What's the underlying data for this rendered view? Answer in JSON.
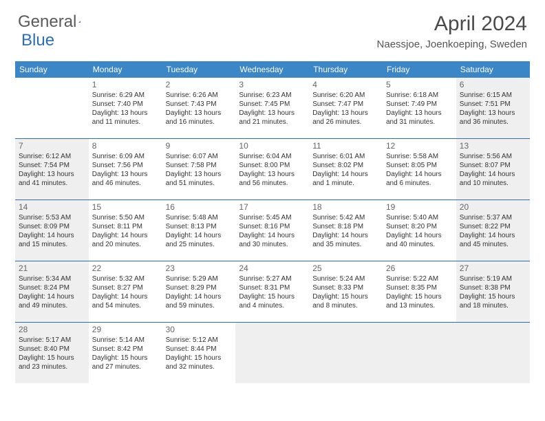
{
  "logo": {
    "text1": "General",
    "text2": "Blue"
  },
  "title": "April 2024",
  "location": "Naessjoe, Joenkoeping, Sweden",
  "colors": {
    "header_bg": "#3b86c7",
    "border": "#2a6db8",
    "shaded": "#efefef",
    "text": "#333333"
  },
  "day_headers": [
    "Sunday",
    "Monday",
    "Tuesday",
    "Wednesday",
    "Thursday",
    "Friday",
    "Saturday"
  ],
  "weeks": [
    [
      {
        "empty": true
      },
      {
        "n": "1",
        "sunrise": "Sunrise: 6:29 AM",
        "sunset": "Sunset: 7:40 PM",
        "daylight": "Daylight: 13 hours and 11 minutes."
      },
      {
        "n": "2",
        "sunrise": "Sunrise: 6:26 AM",
        "sunset": "Sunset: 7:43 PM",
        "daylight": "Daylight: 13 hours and 16 minutes."
      },
      {
        "n": "3",
        "sunrise": "Sunrise: 6:23 AM",
        "sunset": "Sunset: 7:45 PM",
        "daylight": "Daylight: 13 hours and 21 minutes."
      },
      {
        "n": "4",
        "sunrise": "Sunrise: 6:20 AM",
        "sunset": "Sunset: 7:47 PM",
        "daylight": "Daylight: 13 hours and 26 minutes."
      },
      {
        "n": "5",
        "sunrise": "Sunrise: 6:18 AM",
        "sunset": "Sunset: 7:49 PM",
        "daylight": "Daylight: 13 hours and 31 minutes."
      },
      {
        "n": "6",
        "sunrise": "Sunrise: 6:15 AM",
        "sunset": "Sunset: 7:51 PM",
        "daylight": "Daylight: 13 hours and 36 minutes.",
        "shaded": true
      }
    ],
    [
      {
        "n": "7",
        "sunrise": "Sunrise: 6:12 AM",
        "sunset": "Sunset: 7:54 PM",
        "daylight": "Daylight: 13 hours and 41 minutes.",
        "shaded": true
      },
      {
        "n": "8",
        "sunrise": "Sunrise: 6:09 AM",
        "sunset": "Sunset: 7:56 PM",
        "daylight": "Daylight: 13 hours and 46 minutes."
      },
      {
        "n": "9",
        "sunrise": "Sunrise: 6:07 AM",
        "sunset": "Sunset: 7:58 PM",
        "daylight": "Daylight: 13 hours and 51 minutes."
      },
      {
        "n": "10",
        "sunrise": "Sunrise: 6:04 AM",
        "sunset": "Sunset: 8:00 PM",
        "daylight": "Daylight: 13 hours and 56 minutes."
      },
      {
        "n": "11",
        "sunrise": "Sunrise: 6:01 AM",
        "sunset": "Sunset: 8:02 PM",
        "daylight": "Daylight: 14 hours and 1 minute."
      },
      {
        "n": "12",
        "sunrise": "Sunrise: 5:58 AM",
        "sunset": "Sunset: 8:05 PM",
        "daylight": "Daylight: 14 hours and 6 minutes."
      },
      {
        "n": "13",
        "sunrise": "Sunrise: 5:56 AM",
        "sunset": "Sunset: 8:07 PM",
        "daylight": "Daylight: 14 hours and 10 minutes.",
        "shaded": true
      }
    ],
    [
      {
        "n": "14",
        "sunrise": "Sunrise: 5:53 AM",
        "sunset": "Sunset: 8:09 PM",
        "daylight": "Daylight: 14 hours and 15 minutes.",
        "shaded": true
      },
      {
        "n": "15",
        "sunrise": "Sunrise: 5:50 AM",
        "sunset": "Sunset: 8:11 PM",
        "daylight": "Daylight: 14 hours and 20 minutes."
      },
      {
        "n": "16",
        "sunrise": "Sunrise: 5:48 AM",
        "sunset": "Sunset: 8:13 PM",
        "daylight": "Daylight: 14 hours and 25 minutes."
      },
      {
        "n": "17",
        "sunrise": "Sunrise: 5:45 AM",
        "sunset": "Sunset: 8:16 PM",
        "daylight": "Daylight: 14 hours and 30 minutes."
      },
      {
        "n": "18",
        "sunrise": "Sunrise: 5:42 AM",
        "sunset": "Sunset: 8:18 PM",
        "daylight": "Daylight: 14 hours and 35 minutes."
      },
      {
        "n": "19",
        "sunrise": "Sunrise: 5:40 AM",
        "sunset": "Sunset: 8:20 PM",
        "daylight": "Daylight: 14 hours and 40 minutes."
      },
      {
        "n": "20",
        "sunrise": "Sunrise: 5:37 AM",
        "sunset": "Sunset: 8:22 PM",
        "daylight": "Daylight: 14 hours and 45 minutes.",
        "shaded": true
      }
    ],
    [
      {
        "n": "21",
        "sunrise": "Sunrise: 5:34 AM",
        "sunset": "Sunset: 8:24 PM",
        "daylight": "Daylight: 14 hours and 49 minutes.",
        "shaded": true
      },
      {
        "n": "22",
        "sunrise": "Sunrise: 5:32 AM",
        "sunset": "Sunset: 8:27 PM",
        "daylight": "Daylight: 14 hours and 54 minutes."
      },
      {
        "n": "23",
        "sunrise": "Sunrise: 5:29 AM",
        "sunset": "Sunset: 8:29 PM",
        "daylight": "Daylight: 14 hours and 59 minutes."
      },
      {
        "n": "24",
        "sunrise": "Sunrise: 5:27 AM",
        "sunset": "Sunset: 8:31 PM",
        "daylight": "Daylight: 15 hours and 4 minutes."
      },
      {
        "n": "25",
        "sunrise": "Sunrise: 5:24 AM",
        "sunset": "Sunset: 8:33 PM",
        "daylight": "Daylight: 15 hours and 8 minutes."
      },
      {
        "n": "26",
        "sunrise": "Sunrise: 5:22 AM",
        "sunset": "Sunset: 8:35 PM",
        "daylight": "Daylight: 15 hours and 13 minutes."
      },
      {
        "n": "27",
        "sunrise": "Sunrise: 5:19 AM",
        "sunset": "Sunset: 8:38 PM",
        "daylight": "Daylight: 15 hours and 18 minutes.",
        "shaded": true
      }
    ],
    [
      {
        "n": "28",
        "sunrise": "Sunrise: 5:17 AM",
        "sunset": "Sunset: 8:40 PM",
        "daylight": "Daylight: 15 hours and 23 minutes.",
        "shaded": true
      },
      {
        "n": "29",
        "sunrise": "Sunrise: 5:14 AM",
        "sunset": "Sunset: 8:42 PM",
        "daylight": "Daylight: 15 hours and 27 minutes."
      },
      {
        "n": "30",
        "sunrise": "Sunrise: 5:12 AM",
        "sunset": "Sunset: 8:44 PM",
        "daylight": "Daylight: 15 hours and 32 minutes."
      },
      {
        "empty": true,
        "shaded": true
      },
      {
        "empty": true,
        "shaded": true
      },
      {
        "empty": true,
        "shaded": true
      },
      {
        "empty": true,
        "shaded": true
      }
    ]
  ]
}
